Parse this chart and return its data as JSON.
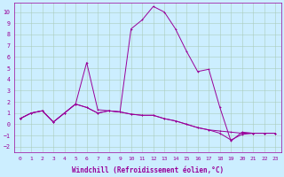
{
  "xlabel": "Windchill (Refroidissement éolien,°C)",
  "bg_color": "#cceeff",
  "line_color": "#990099",
  "grid_color": "#aaccbb",
  "xlim": [
    -0.5,
    23.5
  ],
  "ylim": [
    -2.5,
    10.8
  ],
  "x_ticks": [
    0,
    1,
    2,
    3,
    4,
    5,
    6,
    7,
    8,
    9,
    10,
    11,
    12,
    13,
    14,
    15,
    16,
    17,
    18,
    19,
    20,
    21,
    22,
    23
  ],
  "yticks": [
    -2,
    -1,
    0,
    1,
    2,
    3,
    4,
    5,
    6,
    7,
    8,
    9,
    10
  ],
  "line_main_x": [
    0,
    1,
    2,
    3,
    4,
    5,
    6,
    7,
    8,
    9,
    10,
    11,
    12,
    13,
    14,
    15,
    16,
    17,
    18,
    19,
    20,
    21,
    22,
    23
  ],
  "line_main_y": [
    0.5,
    1.0,
    1.2,
    0.2,
    1.0,
    1.8,
    5.5,
    1.3,
    1.2,
    1.1,
    8.5,
    9.3,
    10.5,
    10.0,
    8.5,
    6.5,
    4.7,
    4.9,
    1.5,
    -1.5,
    -0.7,
    -0.8,
    -0.8,
    -0.8
  ],
  "line_flat1_x": [
    0,
    1,
    2,
    3,
    4,
    5,
    6,
    7,
    8,
    9,
    10,
    11,
    12,
    13,
    14,
    15,
    16,
    17,
    18,
    19,
    20,
    21,
    22,
    23
  ],
  "line_flat1_y": [
    0.5,
    1.0,
    1.2,
    0.2,
    1.0,
    1.8,
    1.5,
    1.0,
    1.2,
    1.1,
    0.9,
    0.8,
    0.8,
    0.5,
    0.3,
    0.0,
    -0.3,
    -0.5,
    -0.6,
    -0.7,
    -0.8,
    -0.8,
    -0.8,
    -0.8
  ],
  "line_flat2_x": [
    0,
    1,
    2,
    3,
    4,
    5,
    6,
    7,
    8,
    9,
    10,
    11,
    12,
    13,
    14,
    15,
    16,
    17,
    18,
    19,
    20,
    21,
    22,
    23
  ],
  "line_flat2_y": [
    0.5,
    1.0,
    1.2,
    0.2,
    1.0,
    1.8,
    1.5,
    1.0,
    1.2,
    1.1,
    0.9,
    0.8,
    0.8,
    0.5,
    0.3,
    0.0,
    -0.3,
    -0.5,
    -0.8,
    -1.4,
    -0.9,
    -0.8,
    -0.8,
    -0.8
  ],
  "font_color": "#990099",
  "tick_fontsize": 4.5,
  "xlabel_fontsize": 5.5,
  "linewidth": 0.7,
  "markersize": 2.0
}
